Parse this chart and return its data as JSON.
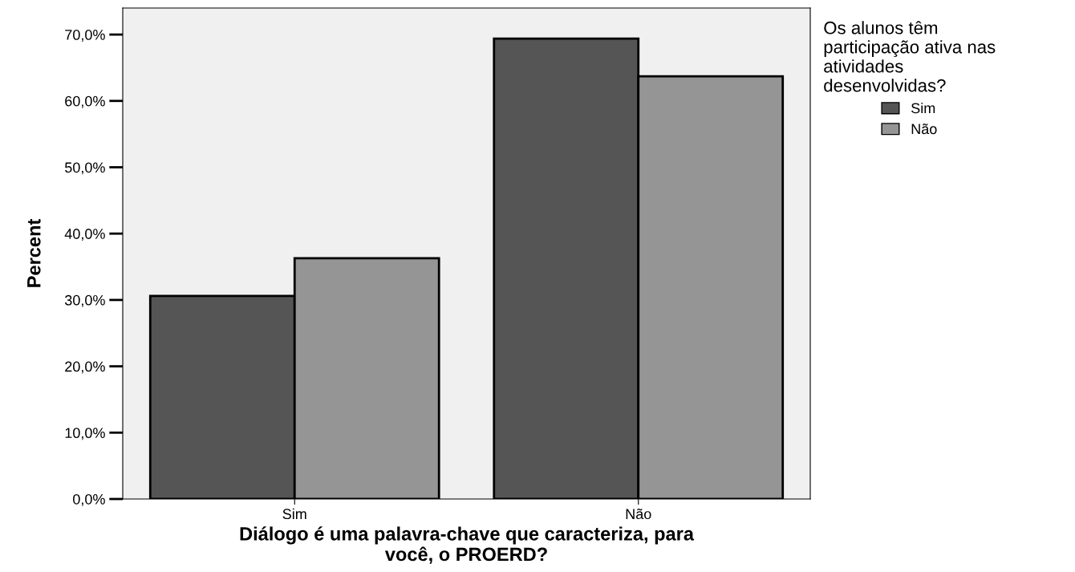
{
  "chart_data": {
    "type": "bar",
    "xlabel": "Diálogo é uma palavra-chave que caracteriza, para\nvocê, o PROERD?",
    "ylabel": "Percent",
    "legend_title": "Os alunos têm\nparticipação ativa nas\natividades\ndesenvolvidas?",
    "categories": [
      "Sim",
      "Não"
    ],
    "series": [
      {
        "name": "Sim",
        "color": "#555555",
        "values": [
          30.6,
          69.4
        ]
      },
      {
        "name": "Não",
        "color": "#959595",
        "values": [
          36.3,
          63.7
        ]
      }
    ],
    "ylim": [
      0,
      74
    ],
    "yticks": [
      {
        "value": 0,
        "label": "0,0%"
      },
      {
        "value": 10,
        "label": "10,0%"
      },
      {
        "value": 20,
        "label": "20,0%"
      },
      {
        "value": 30,
        "label": "30,0%"
      },
      {
        "value": 40,
        "label": "40,0%"
      },
      {
        "value": 50,
        "label": "50,0%"
      },
      {
        "value": 60,
        "label": "60,0%"
      },
      {
        "value": 70,
        "label": "70,0%"
      }
    ],
    "grid": false,
    "legend": "top right"
  }
}
